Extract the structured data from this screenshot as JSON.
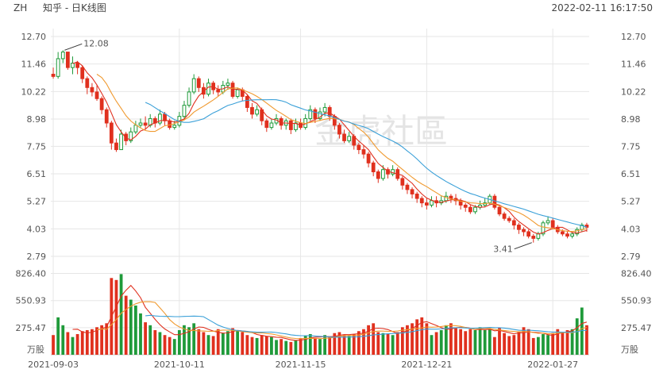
{
  "header": {
    "ticker": "ZH",
    "title": "知乎 - 日K线图",
    "timestamp": "2022-02-11 16:17:50"
  },
  "watermark": "金虎社區",
  "colors": {
    "up": "#1f9a3a",
    "down": "#e0301e",
    "ma5": "#e0301e",
    "ma10": "#f09a30",
    "ma20": "#3aa0d8",
    "grid": "#e6e6e6"
  },
  "chart_data": {
    "type": "candlestick",
    "price_axis": {
      "ticks": [
        "12.70",
        "11.46",
        "10.22",
        "8.98",
        "7.75",
        "6.51",
        "5.27",
        "4.03",
        "2.79"
      ],
      "min": 2.79,
      "max": 12.7
    },
    "volume_axis": {
      "ticks": [
        "826.40",
        "550.93",
        "275.47"
      ],
      "unit": "万股",
      "min": 0,
      "max": 826.4
    },
    "x_labels": [
      "2021-09-03",
      "2021-10-11",
      "2021-11-15",
      "2021-12-21",
      "2022-01-27"
    ],
    "annotations": {
      "high": "12.08",
      "low": "3.41"
    },
    "candles": [
      [
        11.0,
        10.9,
        11.3,
        10.8,
        200
      ],
      [
        10.9,
        11.7,
        12.0,
        10.8,
        380
      ],
      [
        11.7,
        12.0,
        12.08,
        11.5,
        300
      ],
      [
        12.0,
        11.3,
        12.0,
        11.2,
        230
      ],
      [
        11.3,
        11.5,
        11.8,
        11.0,
        180
      ],
      [
        11.5,
        11.3,
        11.6,
        11.0,
        210
      ],
      [
        11.3,
        10.8,
        11.4,
        10.6,
        240
      ],
      [
        10.8,
        10.4,
        10.9,
        10.1,
        250
      ],
      [
        10.4,
        10.2,
        10.6,
        10.0,
        260
      ],
      [
        10.2,
        9.9,
        10.5,
        9.8,
        280
      ],
      [
        9.9,
        9.4,
        10.0,
        9.2,
        300
      ],
      [
        9.4,
        8.8,
        9.5,
        8.6,
        320
      ],
      [
        8.8,
        7.9,
        8.9,
        7.6,
        780
      ],
      [
        7.9,
        7.6,
        8.1,
        7.5,
        760
      ],
      [
        7.6,
        8.3,
        8.5,
        7.6,
        820
      ],
      [
        8.3,
        8.0,
        8.4,
        7.8,
        600
      ],
      [
        8.0,
        8.4,
        8.6,
        7.9,
        560
      ],
      [
        8.4,
        8.7,
        8.9,
        8.3,
        500
      ],
      [
        8.7,
        8.8,
        9.0,
        8.6,
        420
      ],
      [
        8.8,
        8.7,
        9.1,
        8.5,
        330
      ],
      [
        8.7,
        9.0,
        9.2,
        8.6,
        300
      ],
      [
        9.0,
        8.8,
        9.1,
        8.6,
        250
      ],
      [
        8.8,
        9.2,
        9.4,
        8.7,
        230
      ],
      [
        9.2,
        8.9,
        9.3,
        8.7,
        200
      ],
      [
        8.9,
        8.6,
        9.0,
        8.5,
        180
      ],
      [
        8.6,
        8.7,
        8.9,
        8.5,
        160
      ],
      [
        8.7,
        9.1,
        9.3,
        8.6,
        250
      ],
      [
        9.1,
        9.6,
        9.8,
        9.0,
        300
      ],
      [
        9.6,
        10.2,
        10.4,
        9.5,
        280
      ],
      [
        10.2,
        10.8,
        11.0,
        10.1,
        320
      ],
      [
        10.8,
        10.4,
        10.9,
        10.2,
        260
      ],
      [
        10.4,
        10.1,
        10.6,
        9.9,
        230
      ],
      [
        10.1,
        10.6,
        10.8,
        10.0,
        200
      ],
      [
        10.6,
        10.3,
        10.7,
        10.1,
        190
      ],
      [
        10.3,
        10.2,
        10.5,
        10.0,
        260
      ],
      [
        10.2,
        10.5,
        10.7,
        10.1,
        220
      ],
      [
        10.5,
        10.6,
        10.8,
        10.3,
        240
      ],
      [
        10.6,
        10.0,
        10.7,
        9.9,
        270
      ],
      [
        10.0,
        10.3,
        10.4,
        9.9,
        250
      ],
      [
        10.3,
        10.0,
        10.4,
        9.8,
        230
      ],
      [
        10.0,
        9.5,
        10.1,
        9.3,
        200
      ],
      [
        9.5,
        9.2,
        9.7,
        9.0,
        180
      ],
      [
        9.2,
        9.4,
        9.6,
        9.1,
        170
      ],
      [
        9.4,
        8.9,
        9.5,
        8.7,
        200
      ],
      [
        8.9,
        8.6,
        9.0,
        8.4,
        190
      ],
      [
        8.6,
        8.8,
        9.0,
        8.5,
        180
      ],
      [
        8.8,
        9.0,
        9.2,
        8.7,
        150
      ],
      [
        9.0,
        8.7,
        9.1,
        8.5,
        160
      ],
      [
        8.7,
        8.9,
        9.0,
        8.5,
        140
      ],
      [
        8.9,
        8.5,
        9.0,
        8.3,
        130
      ],
      [
        8.5,
        8.8,
        9.0,
        8.4,
        150
      ],
      [
        8.8,
        8.6,
        9.0,
        8.5,
        170
      ],
      [
        8.6,
        9.0,
        9.2,
        8.5,
        190
      ],
      [
        9.0,
        9.4,
        9.6,
        8.9,
        210
      ],
      [
        9.4,
        9.0,
        9.5,
        8.8,
        170
      ],
      [
        9.0,
        9.3,
        9.5,
        8.9,
        160
      ],
      [
        9.3,
        9.5,
        9.7,
        9.1,
        200
      ],
      [
        9.5,
        9.1,
        9.6,
        8.9,
        180
      ],
      [
        9.1,
        8.7,
        9.2,
        8.5,
        220
      ],
      [
        8.7,
        8.3,
        8.8,
        8.1,
        230
      ],
      [
        8.3,
        8.0,
        8.5,
        7.9,
        200
      ],
      [
        8.0,
        8.2,
        8.4,
        7.9,
        190
      ],
      [
        8.2,
        7.8,
        8.3,
        7.6,
        210
      ],
      [
        7.8,
        7.6,
        7.9,
        7.4,
        240
      ],
      [
        7.6,
        7.4,
        7.8,
        7.2,
        260
      ],
      [
        7.4,
        7.0,
        7.5,
        6.8,
        300
      ],
      [
        7.0,
        6.6,
        7.1,
        6.4,
        320
      ],
      [
        6.6,
        6.3,
        6.7,
        6.1,
        230
      ],
      [
        6.3,
        6.7,
        6.9,
        6.2,
        220
      ],
      [
        6.7,
        6.5,
        6.8,
        6.3,
        210
      ],
      [
        6.5,
        6.7,
        6.9,
        6.4,
        200
      ],
      [
        6.7,
        6.3,
        6.8,
        6.2,
        230
      ],
      [
        6.3,
        6.0,
        6.4,
        5.8,
        280
      ],
      [
        6.0,
        5.8,
        6.1,
        5.6,
        300
      ],
      [
        5.8,
        5.6,
        5.9,
        5.4,
        320
      ],
      [
        5.6,
        5.4,
        5.7,
        5.2,
        360
      ],
      [
        5.4,
        5.2,
        5.5,
        5.0,
        380
      ],
      [
        5.2,
        5.1,
        5.4,
        4.9,
        320
      ],
      [
        5.1,
        5.3,
        5.5,
        5.0,
        200
      ],
      [
        5.3,
        5.2,
        5.5,
        5.0,
        230
      ],
      [
        5.2,
        5.3,
        5.5,
        5.1,
        250
      ],
      [
        5.3,
        5.5,
        5.7,
        5.2,
        300
      ],
      [
        5.5,
        5.4,
        5.6,
        5.2,
        320
      ],
      [
        5.4,
        5.3,
        5.6,
        5.1,
        270
      ],
      [
        5.3,
        5.1,
        5.4,
        4.9,
        260
      ],
      [
        5.1,
        5.0,
        5.2,
        4.8,
        240
      ],
      [
        5.0,
        4.8,
        5.1,
        4.7,
        260
      ],
      [
        4.8,
        5.0,
        5.1,
        4.7,
        250
      ],
      [
        5.0,
        5.1,
        5.3,
        4.9,
        280
      ],
      [
        5.1,
        5.2,
        5.4,
        5.0,
        250
      ],
      [
        5.2,
        5.5,
        5.6,
        5.1,
        260
      ],
      [
        5.5,
        5.0,
        5.6,
        4.9,
        180
      ],
      [
        5.0,
        4.7,
        5.1,
        4.6,
        270
      ],
      [
        4.7,
        4.5,
        4.8,
        4.4,
        220
      ],
      [
        4.5,
        4.4,
        4.6,
        4.3,
        190
      ],
      [
        4.4,
        4.2,
        4.5,
        4.0,
        200
      ],
      [
        4.2,
        4.0,
        4.3,
        3.8,
        230
      ],
      [
        4.0,
        3.9,
        4.1,
        3.7,
        280
      ],
      [
        3.9,
        3.7,
        4.0,
        3.6,
        260
      ],
      [
        3.7,
        3.6,
        3.8,
        3.41,
        170
      ],
      [
        3.6,
        3.8,
        3.9,
        3.5,
        180
      ],
      [
        3.8,
        4.3,
        4.4,
        3.7,
        210
      ],
      [
        4.3,
        4.4,
        4.6,
        4.2,
        200
      ],
      [
        4.4,
        4.1,
        4.5,
        4.0,
        220
      ],
      [
        4.1,
        3.9,
        4.2,
        3.8,
        260
      ],
      [
        3.9,
        3.8,
        4.0,
        3.7,
        230
      ],
      [
        3.8,
        3.7,
        3.9,
        3.6,
        250
      ],
      [
        3.7,
        3.8,
        3.9,
        3.6,
        260
      ],
      [
        3.8,
        4.0,
        4.1,
        3.7,
        370
      ],
      [
        4.0,
        4.2,
        4.3,
        3.9,
        480
      ],
      [
        4.2,
        4.1,
        4.3,
        3.9,
        300
      ]
    ]
  }
}
